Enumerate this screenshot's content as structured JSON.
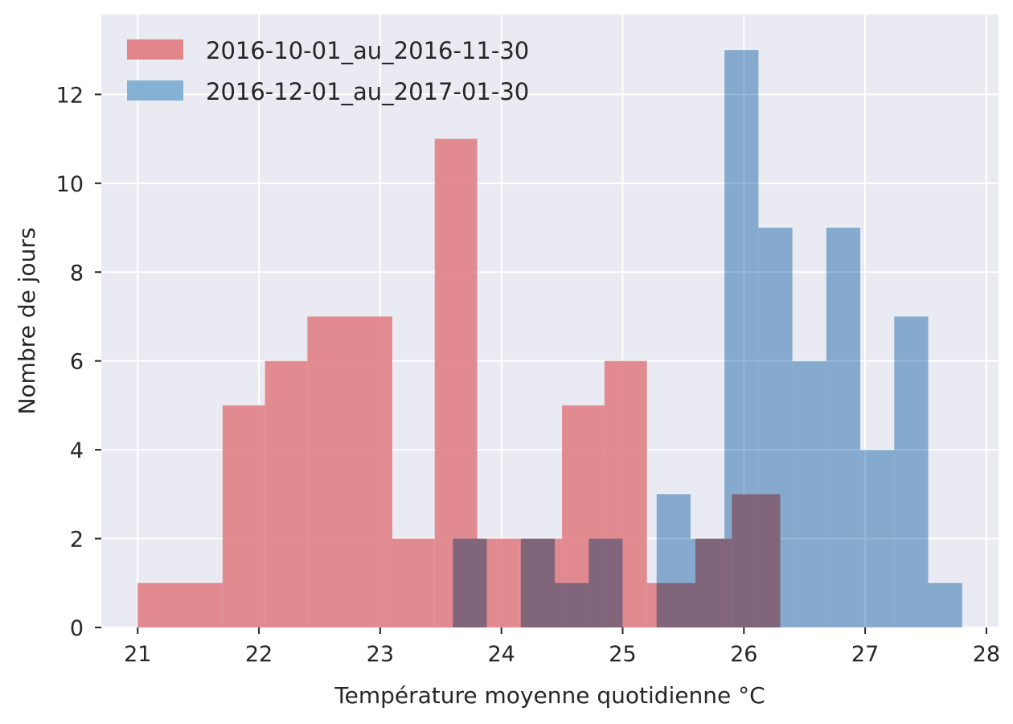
{
  "chart_data": {
    "type": "histogram",
    "xlabel": "Température moyenne quotidienne °C",
    "ylabel": "Nombre de jours",
    "xlim": [
      20.7,
      28.1
    ],
    "ylim": [
      0,
      13.8
    ],
    "xticks": [
      21,
      22,
      23,
      24,
      25,
      26,
      27,
      28
    ],
    "yticks": [
      0,
      2,
      4,
      6,
      8,
      10,
      12
    ],
    "grid": true,
    "legend_position": "top-left",
    "series": [
      {
        "name": "2016-10-01_au_2016-11-30",
        "color": "#e0868b",
        "bins": [
          {
            "x0": 21.0,
            "x1": 21.7,
            "count": 1
          },
          {
            "x0": 21.7,
            "x1": 22.05,
            "count": 5
          },
          {
            "x0": 22.05,
            "x1": 22.4,
            "count": 6
          },
          {
            "x0": 22.4,
            "x1": 23.1,
            "count": 7
          },
          {
            "x0": 23.1,
            "x1": 23.45,
            "count": 2
          },
          {
            "x0": 23.45,
            "x1": 23.8,
            "count": 11
          },
          {
            "x0": 23.8,
            "x1": 24.15,
            "count": 2
          },
          {
            "x0": 24.15,
            "x1": 24.5,
            "count": 2
          },
          {
            "x0": 24.5,
            "x1": 24.85,
            "count": 5
          },
          {
            "x0": 24.85,
            "x1": 25.2,
            "count": 6
          },
          {
            "x0": 25.2,
            "x1": 25.6,
            "count": 1
          },
          {
            "x0": 25.6,
            "x1": 25.9,
            "count": 2
          },
          {
            "x0": 25.9,
            "x1": 26.3,
            "count": 3
          }
        ]
      },
      {
        "name": "2016-12-01_au_2017-01-30",
        "color": "#85b1d4",
        "bins": [
          {
            "x0": 23.6,
            "x1": 23.88,
            "count": 2
          },
          {
            "x0": 24.16,
            "x1": 24.44,
            "count": 2
          },
          {
            "x0": 24.44,
            "x1": 24.72,
            "count": 1
          },
          {
            "x0": 24.72,
            "x1": 25.0,
            "count": 2
          },
          {
            "x0": 25.28,
            "x1": 25.56,
            "count": 3
          },
          {
            "x0": 25.56,
            "x1": 25.84,
            "count": 2
          },
          {
            "x0": 25.84,
            "x1": 26.12,
            "count": 13
          },
          {
            "x0": 26.12,
            "x1": 26.4,
            "count": 9
          },
          {
            "x0": 26.4,
            "x1": 26.68,
            "count": 6
          },
          {
            "x0": 26.68,
            "x1": 26.96,
            "count": 9
          },
          {
            "x0": 26.96,
            "x1": 27.24,
            "count": 4
          },
          {
            "x0": 27.24,
            "x1": 27.52,
            "count": 7
          },
          {
            "x0": 27.52,
            "x1": 27.8,
            "count": 1
          }
        ]
      }
    ]
  }
}
